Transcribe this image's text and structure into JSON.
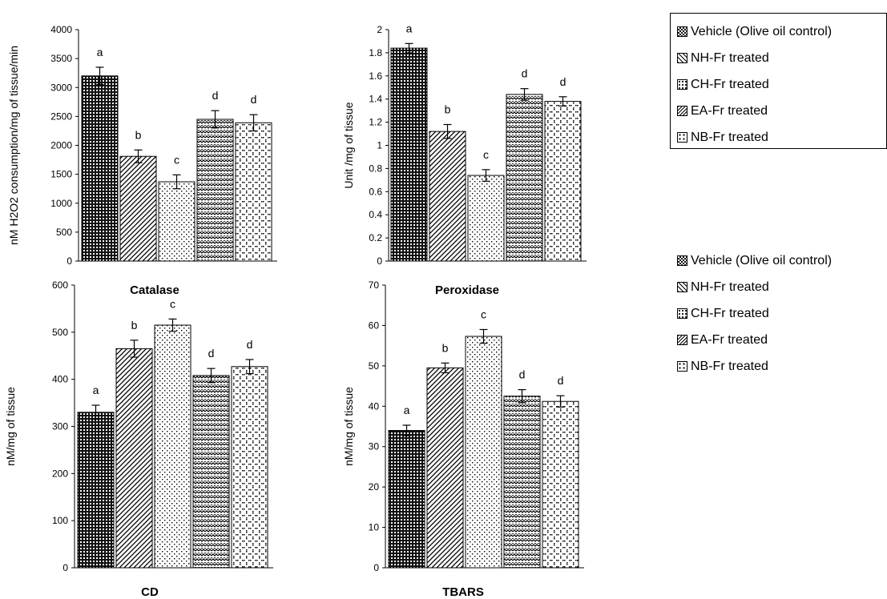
{
  "legend": {
    "items": [
      "Vehicle (Olive oil control)",
      "NH-Fr treated",
      "CH-Fr treated",
      "EA-Fr treated",
      "NB-Fr treated"
    ]
  },
  "series_styles": {
    "patterns": [
      "checker-dark",
      "diag-hatch",
      "dots",
      "zigzag",
      "diamond-dots"
    ],
    "colors": {
      "bar_fill": "#ffffff",
      "ink": "#000000"
    }
  },
  "chart_data": [
    {
      "type": "bar",
      "title": "Catalase",
      "ylabel": "nM H2O2 consumption/mg of tissue/min",
      "ylim": [
        0,
        4000
      ],
      "yticks": [
        0,
        500,
        1000,
        1500,
        2000,
        2500,
        3000,
        3500,
        4000
      ],
      "categories": [
        "Vehicle (Olive oil control)",
        "NH-Fr treated",
        "CH-Fr treated",
        "EA-Fr treated",
        "NB-Fr treated"
      ],
      "values": [
        3200,
        1810,
        1370,
        2450,
        2390
      ],
      "errors": [
        150,
        110,
        120,
        150,
        140
      ],
      "labels": [
        "a",
        "b",
        "c",
        "d",
        "d"
      ],
      "grid": false,
      "legend_position": "right"
    },
    {
      "type": "bar",
      "title": "Peroxidase",
      "ylabel": "Unit /mg of tissue",
      "ylim": [
        0,
        2
      ],
      "yticks": [
        "0",
        "0.2",
        "0.4",
        "0.6",
        "0.8",
        "1",
        "1.2",
        "1.4",
        "1.6",
        "1.8",
        "2"
      ],
      "categories": [
        "Vehicle (Olive oil control)",
        "NH-Fr treated",
        "CH-Fr treated",
        "EA-Fr treated",
        "NB-Fr treated"
      ],
      "values": [
        1.84,
        1.12,
        0.74,
        1.44,
        1.38
      ],
      "errors": [
        0.04,
        0.06,
        0.05,
        0.05,
        0.04
      ],
      "labels": [
        "a",
        "b",
        "c",
        "d",
        "d"
      ],
      "grid": false,
      "legend_position": "right"
    },
    {
      "type": "bar",
      "title": "CD",
      "ylabel": "nM/mg of tissue",
      "ylim": [
        0,
        600
      ],
      "yticks": [
        0,
        100,
        200,
        300,
        400,
        500,
        600
      ],
      "categories": [
        "Vehicle (Olive oil control)",
        "NH-Fr treated",
        "CH-Fr treated",
        "EA-Fr treated",
        "NB-Fr treated"
      ],
      "values": [
        330,
        465,
        515,
        408,
        427
      ],
      "errors": [
        15,
        18,
        13,
        15,
        15
      ],
      "labels": [
        "a",
        "b",
        "c",
        "d",
        "d"
      ],
      "grid": false,
      "legend_position": "right"
    },
    {
      "type": "bar",
      "title": "TBARS",
      "ylabel": "nM/mg of tissue",
      "ylim": [
        0,
        70
      ],
      "yticks": [
        0,
        10,
        20,
        30,
        40,
        50,
        60,
        70
      ],
      "categories": [
        "Vehicle (Olive oil control)",
        "NH-Fr treated",
        "CH-Fr treated",
        "EA-Fr treated",
        "NB-Fr treated"
      ],
      "values": [
        34,
        49.5,
        57.3,
        42.5,
        41.2
      ],
      "errors": [
        1.3,
        1.2,
        1.7,
        1.6,
        1.4
      ],
      "labels": [
        "a",
        "b",
        "c",
        "d",
        "d"
      ],
      "grid": false,
      "legend_position": "right"
    }
  ]
}
